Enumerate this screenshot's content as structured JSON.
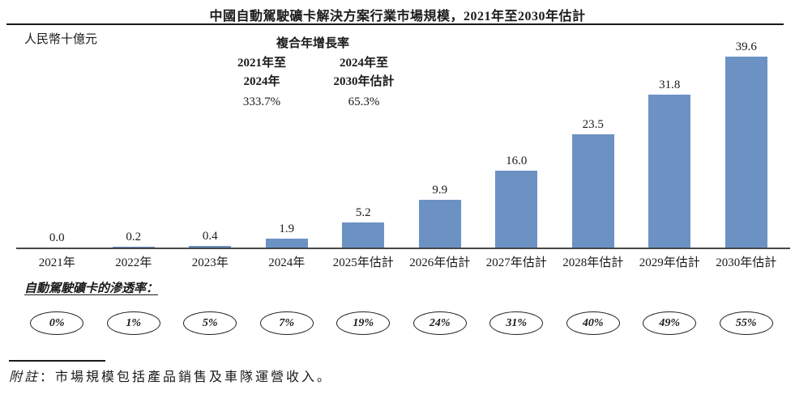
{
  "header": {
    "title": "中國自動駕駛礦卡解決方案行業市場規模，2021年至2030年估計"
  },
  "unit_label": "人民幣十億元",
  "cagr": {
    "heading": "複合年增長率",
    "periods": [
      {
        "line1": "2021年至",
        "line2": "2024年",
        "value": "333.7%"
      },
      {
        "line1": "2024年至",
        "line2": "2030年估計",
        "value": "65.3%"
      }
    ]
  },
  "chart_data": {
    "type": "bar",
    "title": "中國自動駕駛礦卡解決方案行業市場規模，2021年至2030年估計",
    "ylabel": "人民幣十億元",
    "categories": [
      "2021年",
      "2022年",
      "2023年",
      "2024年",
      "2025年估計",
      "2026年估計",
      "2027年估計",
      "2028年估計",
      "2029年估計",
      "2030年估計"
    ],
    "values": [
      0.0,
      0.2,
      0.4,
      1.9,
      5.2,
      9.9,
      16.0,
      23.5,
      31.8,
      39.6
    ],
    "value_labels": [
      "0.0",
      "0.2",
      "0.4",
      "1.9",
      "5.2",
      "9.9",
      "16.0",
      "23.5",
      "31.8",
      "39.6"
    ],
    "ylim": [
      0,
      40
    ],
    "grid": false,
    "legend_position": "none",
    "bar_color": "#6C92C3"
  },
  "penetration": {
    "heading": "自動駕駛礦卡的滲透率：",
    "values": [
      "0%",
      "1%",
      "5%",
      "7%",
      "19%",
      "24%",
      "31%",
      "40%",
      "49%",
      "55%"
    ]
  },
  "footnote": {
    "label": "附註",
    "text": "：市場規模包括產品銷售及車隊運營收入。"
  }
}
